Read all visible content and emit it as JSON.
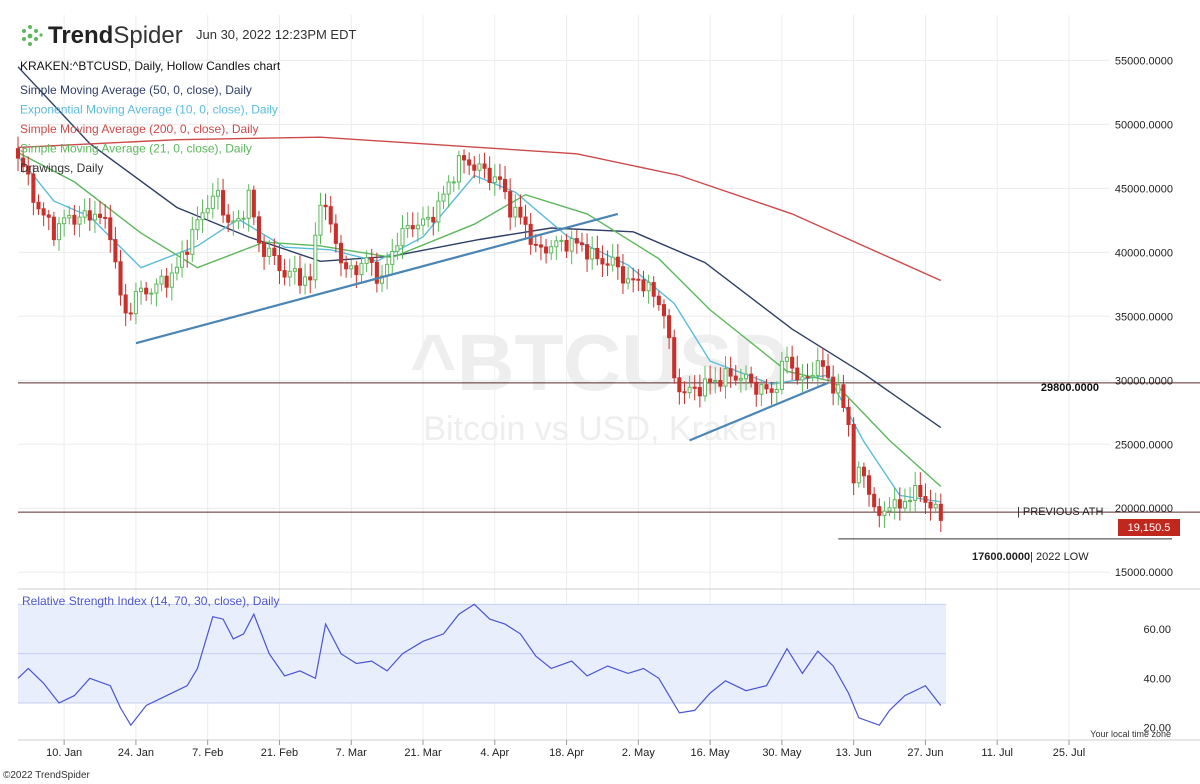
{
  "header": {
    "brand_prefix": "Trend",
    "brand_suffix": "Spider",
    "timestamp": "Jun 30, 2022 12:23PM EDT",
    "chart_title": "KRAKEN:^BTCUSD, Daily, Hollow Candles chart"
  },
  "legend": [
    {
      "text": "Simple Moving Average (50, 0, close), Daily",
      "color": "#2e3f66"
    },
    {
      "text": "Exponential Moving Average (10, 0, close), Daily",
      "color": "#5bbcdc"
    },
    {
      "text": "Simple Moving Average (200, 0, close), Daily",
      "color": "#cc4a4a"
    },
    {
      "text": "Simple Moving Average (21, 0, close), Daily",
      "color": "#5cb85c"
    },
    {
      "text": "Drawings, Daily",
      "color": "#333333"
    }
  ],
  "watermark": {
    "symbol": "^BTCUSD",
    "name": "Bitcoin vs USD, Kraken"
  },
  "annotations": {
    "level_29800": "29800.0000",
    "previous_ath": "| PREVIOUS ATH",
    "low_value": "17600.0000",
    "low_label": "| 2022 LOW",
    "last_price": "19,150.5"
  },
  "rsi_label": "Relative Strength Index (14, 70, 30, close), Daily",
  "footer": {
    "copyright": "©2022 TrendSpider",
    "timezone": "Your local time zone"
  },
  "colors": {
    "up": "#5cb85c",
    "down": "#c9302c",
    "trendline": "#4a85b5",
    "rsi": "#4b55d6",
    "rsi_band": "#e8eefb",
    "price_badge": "#c0281e"
  },
  "chart_data": {
    "type": "line",
    "price_axis": {
      "ticks": [
        15000,
        20000,
        25000,
        30000,
        35000,
        40000,
        45000,
        50000,
        55000
      ],
      "tick_labels": [
        "15000.0000",
        "20000.0000",
        "25000.0000",
        "30000.0000",
        "35000.0000",
        "40000.0000",
        "45000.0000",
        "50000.0000",
        "55000.0000"
      ],
      "ylim": [
        14000,
        58000
      ]
    },
    "rsi_axis": {
      "ticks": [
        20,
        40,
        60
      ],
      "tick_labels": [
        "20.00",
        "40.00",
        "60.00"
      ],
      "ylim": [
        15,
        75
      ],
      "band": [
        30,
        70
      ],
      "mid": 50
    },
    "x_tick_labels": [
      "10. Jan",
      "24. Jan",
      "7. Feb",
      "21. Feb",
      "7. Mar",
      "21. Mar",
      "4. Apr",
      "18. Apr",
      "2. May",
      "16. May",
      "30. May",
      "13. Jun",
      "27. Jun",
      "11. Jul",
      "25. Jul"
    ],
    "x_tick_dates": [
      "2022-01-10",
      "2022-01-24",
      "2022-02-07",
      "2022-02-21",
      "2022-03-07",
      "2022-03-21",
      "2022-04-04",
      "2022-04-18",
      "2022-05-02",
      "2022-05-16",
      "2022-05-30",
      "2022-06-13",
      "2022-06-27",
      "2022-07-11",
      "2022-07-25"
    ],
    "x_range": [
      "2022-01-01",
      "2022-08-02"
    ],
    "horizontal_levels": [
      {
        "label": "29800.0000",
        "value": 29800
      },
      {
        "label": "| PREVIOUS ATH",
        "value": 19700
      },
      {
        "label": "17600.0000",
        "value": 17600,
        "from": "2022-06-10"
      }
    ],
    "trendlines": [
      {
        "from": [
          "2022-01-24",
          32900
        ],
        "to": [
          "2022-04-28",
          43000
        ]
      },
      {
        "from": [
          "2022-05-12",
          25300
        ],
        "to": [
          "2022-06-08",
          29800
        ]
      }
    ],
    "last_price": 19150.5,
    "closes": [
      [
        "2022-01-01",
        47700
      ],
      [
        "2022-01-05",
        43400
      ],
      [
        "2022-01-08",
        41700
      ],
      [
        "2022-01-11",
        42800
      ],
      [
        "2022-01-13",
        42600
      ],
      [
        "2022-01-16",
        43100
      ],
      [
        "2022-01-19",
        41700
      ],
      [
        "2022-01-21",
        36500
      ],
      [
        "2022-01-22",
        35000
      ],
      [
        "2022-01-24",
        36700
      ],
      [
        "2022-01-27",
        37100
      ],
      [
        "2022-01-30",
        37900
      ],
      [
        "2022-02-01",
        38700
      ],
      [
        "2022-02-04",
        41500
      ],
      [
        "2022-02-07",
        43900
      ],
      [
        "2022-02-09",
        44400
      ],
      [
        "2022-02-11",
        42400
      ],
      [
        "2022-02-13",
        42200
      ],
      [
        "2022-02-15",
        44600
      ],
      [
        "2022-02-17",
        40600
      ],
      [
        "2022-02-19",
        40000
      ],
      [
        "2022-02-22",
        38300
      ],
      [
        "2022-02-24",
        38300
      ],
      [
        "2022-02-27",
        37700
      ],
      [
        "2022-03-01",
        44400
      ],
      [
        "2022-03-03",
        42000
      ],
      [
        "2022-03-06",
        38400
      ],
      [
        "2022-03-08",
        38800
      ],
      [
        "2022-03-10",
        39400
      ],
      [
        "2022-03-13",
        37800
      ],
      [
        "2022-03-16",
        41100
      ],
      [
        "2022-03-19",
        42200
      ],
      [
        "2022-03-22",
        42400
      ],
      [
        "2022-03-25",
        44400
      ],
      [
        "2022-03-28",
        47100
      ],
      [
        "2022-03-30",
        47000
      ],
      [
        "2022-04-02",
        46300
      ],
      [
        "2022-04-05",
        45500
      ],
      [
        "2022-04-07",
        43500
      ],
      [
        "2022-04-10",
        42200
      ],
      [
        "2022-04-12",
        40100
      ],
      [
        "2022-04-15",
        40500
      ],
      [
        "2022-04-18",
        40800
      ],
      [
        "2022-04-21",
        40500
      ],
      [
        "2022-04-24",
        39400
      ],
      [
        "2022-04-27",
        39200
      ],
      [
        "2022-04-30",
        37700
      ],
      [
        "2022-05-03",
        37700
      ],
      [
        "2022-05-05",
        36500
      ],
      [
        "2022-05-07",
        35500
      ],
      [
        "2022-05-09",
        30100
      ],
      [
        "2022-05-11",
        29000
      ],
      [
        "2022-05-13",
        29300
      ],
      [
        "2022-05-16",
        29800
      ],
      [
        "2022-05-19",
        30300
      ],
      [
        "2022-05-22",
        30300
      ],
      [
        "2022-05-25",
        29500
      ],
      [
        "2022-05-28",
        29000
      ],
      [
        "2022-05-31",
        31800
      ],
      [
        "2022-06-03",
        29700
      ],
      [
        "2022-06-06",
        31400
      ],
      [
        "2022-06-08",
        30200
      ],
      [
        "2022-06-10",
        29100
      ],
      [
        "2022-06-12",
        26600
      ],
      [
        "2022-06-13",
        22500
      ],
      [
        "2022-06-15",
        22600
      ],
      [
        "2022-06-18",
        19000
      ],
      [
        "2022-06-20",
        20600
      ],
      [
        "2022-06-22",
        19900
      ],
      [
        "2022-06-24",
        21200
      ],
      [
        "2022-06-26",
        21000
      ],
      [
        "2022-06-28",
        20300
      ],
      [
        "2022-06-30",
        19150
      ]
    ],
    "series": [
      {
        "name": "Simple Moving Average (50, 0, close), Daily",
        "color": "#2e3f66",
        "points": [
          [
            "2022-01-01",
            54500
          ],
          [
            "2022-01-15",
            48500
          ],
          [
            "2022-02-01",
            43500
          ],
          [
            "2022-02-15",
            41200
          ],
          [
            "2022-03-01",
            39300
          ],
          [
            "2022-03-15",
            39700
          ],
          [
            "2022-04-01",
            41000
          ],
          [
            "2022-04-15",
            41900
          ],
          [
            "2022-05-01",
            41600
          ],
          [
            "2022-05-15",
            39200
          ],
          [
            "2022-06-01",
            34000
          ],
          [
            "2022-06-15",
            30500
          ],
          [
            "2022-06-30",
            26300
          ]
        ]
      },
      {
        "name": "Exponential Moving Average (10, 0, close), Daily",
        "color": "#5bbcdc",
        "points": [
          [
            "2022-01-01",
            47500
          ],
          [
            "2022-01-08",
            44000
          ],
          [
            "2022-01-15",
            42800
          ],
          [
            "2022-01-25",
            38800
          ],
          [
            "2022-02-05",
            40500
          ],
          [
            "2022-02-13",
            42600
          ],
          [
            "2022-02-22",
            40400
          ],
          [
            "2022-03-03",
            40200
          ],
          [
            "2022-03-12",
            39300
          ],
          [
            "2022-03-21",
            41200
          ],
          [
            "2022-03-31",
            46000
          ],
          [
            "2022-04-08",
            44700
          ],
          [
            "2022-04-18",
            41300
          ],
          [
            "2022-04-30",
            39000
          ],
          [
            "2022-05-09",
            36000
          ],
          [
            "2022-05-16",
            31500
          ],
          [
            "2022-05-28",
            29700
          ],
          [
            "2022-06-08",
            30400
          ],
          [
            "2022-06-15",
            25200
          ],
          [
            "2022-06-22",
            21000
          ],
          [
            "2022-06-30",
            20500
          ]
        ]
      },
      {
        "name": "Simple Moving Average (200, 0, close), Daily",
        "color": "#cc4a4a",
        "points": [
          [
            "2022-01-01",
            48200
          ],
          [
            "2022-02-01",
            48800
          ],
          [
            "2022-03-01",
            49000
          ],
          [
            "2022-04-01",
            48200
          ],
          [
            "2022-04-20",
            47700
          ],
          [
            "2022-05-10",
            46000
          ],
          [
            "2022-06-01",
            43000
          ],
          [
            "2022-06-30",
            37800
          ]
        ]
      },
      {
        "name": "Simple Moving Average (21, 0, close), Daily",
        "color": "#5cb85c",
        "points": [
          [
            "2022-01-01",
            47800
          ],
          [
            "2022-01-12",
            45500
          ],
          [
            "2022-01-25",
            41500
          ],
          [
            "2022-02-05",
            38800
          ],
          [
            "2022-02-18",
            40800
          ],
          [
            "2022-03-01",
            40500
          ],
          [
            "2022-03-15",
            39600
          ],
          [
            "2022-03-31",
            42200
          ],
          [
            "2022-04-10",
            44500
          ],
          [
            "2022-04-22",
            43000
          ],
          [
            "2022-05-06",
            39500
          ],
          [
            "2022-05-16",
            35500
          ],
          [
            "2022-05-31",
            30700
          ],
          [
            "2022-06-09",
            29900
          ],
          [
            "2022-06-20",
            25300
          ],
          [
            "2022-06-30",
            21700
          ]
        ]
      },
      {
        "name": "Relative Strength Index (14, 70, 30, close), Daily",
        "color": "#4b55d6",
        "points": [
          [
            "2022-01-01",
            40
          ],
          [
            "2022-01-03",
            44
          ],
          [
            "2022-01-06",
            38
          ],
          [
            "2022-01-09",
            30
          ],
          [
            "2022-01-12",
            33
          ],
          [
            "2022-01-15",
            40
          ],
          [
            "2022-01-19",
            37
          ],
          [
            "2022-01-21",
            28
          ],
          [
            "2022-01-23",
            21
          ],
          [
            "2022-01-26",
            29
          ],
          [
            "2022-01-30",
            33
          ],
          [
            "2022-02-03",
            37
          ],
          [
            "2022-02-05",
            44
          ],
          [
            "2022-02-08",
            65
          ],
          [
            "2022-02-10",
            64
          ],
          [
            "2022-02-12",
            56
          ],
          [
            "2022-02-14",
            58
          ],
          [
            "2022-02-16",
            66
          ],
          [
            "2022-02-19",
            50
          ],
          [
            "2022-02-22",
            41
          ],
          [
            "2022-02-25",
            43
          ],
          [
            "2022-02-28",
            40
          ],
          [
            "2022-03-02",
            62
          ],
          [
            "2022-03-05",
            50
          ],
          [
            "2022-03-08",
            46
          ],
          [
            "2022-03-11",
            47
          ],
          [
            "2022-03-14",
            43
          ],
          [
            "2022-03-17",
            50
          ],
          [
            "2022-03-21",
            55
          ],
          [
            "2022-03-25",
            58
          ],
          [
            "2022-03-28",
            66
          ],
          [
            "2022-03-31",
            70
          ],
          [
            "2022-04-03",
            64
          ],
          [
            "2022-04-06",
            62
          ],
          [
            "2022-04-09",
            58
          ],
          [
            "2022-04-12",
            49
          ],
          [
            "2022-04-15",
            44
          ],
          [
            "2022-04-19",
            47
          ],
          [
            "2022-04-22",
            41
          ],
          [
            "2022-04-26",
            45
          ],
          [
            "2022-04-30",
            42
          ],
          [
            "2022-05-03",
            44
          ],
          [
            "2022-05-06",
            40
          ],
          [
            "2022-05-10",
            26
          ],
          [
            "2022-05-13",
            27
          ],
          [
            "2022-05-16",
            34
          ],
          [
            "2022-05-19",
            39
          ],
          [
            "2022-05-23",
            35
          ],
          [
            "2022-05-27",
            37
          ],
          [
            "2022-05-31",
            52
          ],
          [
            "2022-06-03",
            42
          ],
          [
            "2022-06-06",
            51
          ],
          [
            "2022-06-09",
            45
          ],
          [
            "2022-06-12",
            34
          ],
          [
            "2022-06-14",
            24
          ],
          [
            "2022-06-18",
            21
          ],
          [
            "2022-06-20",
            27
          ],
          [
            "2022-06-23",
            33
          ],
          [
            "2022-06-27",
            37
          ],
          [
            "2022-06-30",
            29
          ]
        ]
      }
    ]
  }
}
